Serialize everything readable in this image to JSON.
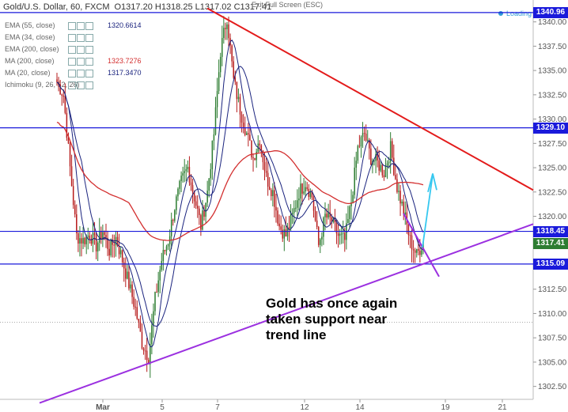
{
  "header": {
    "symbol": "Gold/U.S. Dollar, 60, FXCM",
    "ohlc": "O1317.20 H1318.25 L1317.02 C1317.41",
    "exit_fullscreen": "Exit Full Screen (ESC)",
    "loading": "Loading"
  },
  "indicators": [
    {
      "label": "EMA (55, close)",
      "value": "1320.6614",
      "color": "#1a237e"
    },
    {
      "label": "EMA (34, close)",
      "value": "",
      "color": "#1a237e"
    },
    {
      "label": "EMA (200, close)",
      "value": "",
      "color": "#1a237e"
    },
    {
      "label": "MA (200, close)",
      "value": "1323.7276",
      "color": "#d32f2f"
    },
    {
      "label": "MA (20, close)",
      "value": "1317.3470",
      "color": "#1a237e"
    },
    {
      "label": "Ichimoku (9, 26, 52, 26)",
      "value": "",
      "color": "#1a237e"
    }
  ],
  "annotation": "Gold has once again\ntaken support near\ntrend line",
  "chart_data": {
    "type": "candlestick",
    "y_ticks": [
      1302.5,
      1305.0,
      1307.5,
      1310.0,
      1312.5,
      1315.0,
      1317.5,
      1320.0,
      1322.5,
      1325.0,
      1327.5,
      1330.0,
      1332.5,
      1335.0,
      1337.5,
      1340.0
    ],
    "ylim": [
      1300.6,
      1341.6
    ],
    "x_ticks": [
      "Mar",
      "5",
      "7",
      "12",
      "14",
      "19",
      "21"
    ],
    "horizontal_levels": [
      1340.96,
      1329.1,
      1318.45,
      1315.09
    ],
    "current_price": 1317.41,
    "colors": {
      "up": "#2e7d32",
      "down": "#b71c1c",
      "level": "#1a1adb",
      "resistance": "#e31b1b",
      "support": "#9b30e0",
      "arrow": "#36c8f0",
      "ma200": "#d32f2f",
      "ema": "#1a237e"
    },
    "close_path": [
      [
        0,
        1333.8
      ],
      [
        1,
        1332.5
      ],
      [
        2,
        1325.0
      ],
      [
        3,
        1318.0
      ],
      [
        4,
        1317.5
      ],
      [
        5,
        1318.2
      ],
      [
        6,
        1317.0
      ],
      [
        7,
        1318.5
      ],
      [
        8,
        1316.5
      ],
      [
        9,
        1317.8
      ],
      [
        10,
        1315.5
      ],
      [
        11,
        1313.0
      ],
      [
        12,
        1310.5
      ],
      [
        13,
        1307.0
      ],
      [
        14,
        1305.5
      ],
      [
        15,
        1311.5
      ],
      [
        16,
        1315.5
      ],
      [
        17,
        1317.5
      ],
      [
        18,
        1321.0
      ],
      [
        19,
        1323.5
      ],
      [
        20,
        1325.0
      ],
      [
        21,
        1322.0
      ],
      [
        22,
        1319.0
      ],
      [
        23,
        1322.5
      ],
      [
        24,
        1328.5
      ],
      [
        25,
        1337.0
      ],
      [
        26,
        1340.5
      ],
      [
        27,
        1334.0
      ],
      [
        28,
        1331.0
      ],
      [
        29,
        1328.5
      ],
      [
        30,
        1326.0
      ],
      [
        31,
        1328.0
      ],
      [
        32,
        1324.0
      ],
      [
        33,
        1322.5
      ],
      [
        34,
        1319.0
      ],
      [
        35,
        1318.0
      ],
      [
        36,
        1320.0
      ],
      [
        37,
        1322.5
      ],
      [
        38,
        1323.5
      ],
      [
        39,
        1322.0
      ],
      [
        40,
        1317.0
      ],
      [
        41,
        1320.0
      ],
      [
        42,
        1319.5
      ],
      [
        43,
        1318.0
      ],
      [
        44,
        1317.5
      ],
      [
        45,
        1321.5
      ],
      [
        46,
        1327.0
      ],
      [
        47,
        1328.5
      ],
      [
        48,
        1326.0
      ],
      [
        49,
        1325.5
      ],
      [
        50,
        1324.5
      ],
      [
        51,
        1327.0
      ],
      [
        52,
        1323.0
      ],
      [
        53,
        1320.5
      ],
      [
        54,
        1317.5
      ],
      [
        55,
        1316.0
      ],
      [
        56,
        1317.4
      ]
    ]
  }
}
